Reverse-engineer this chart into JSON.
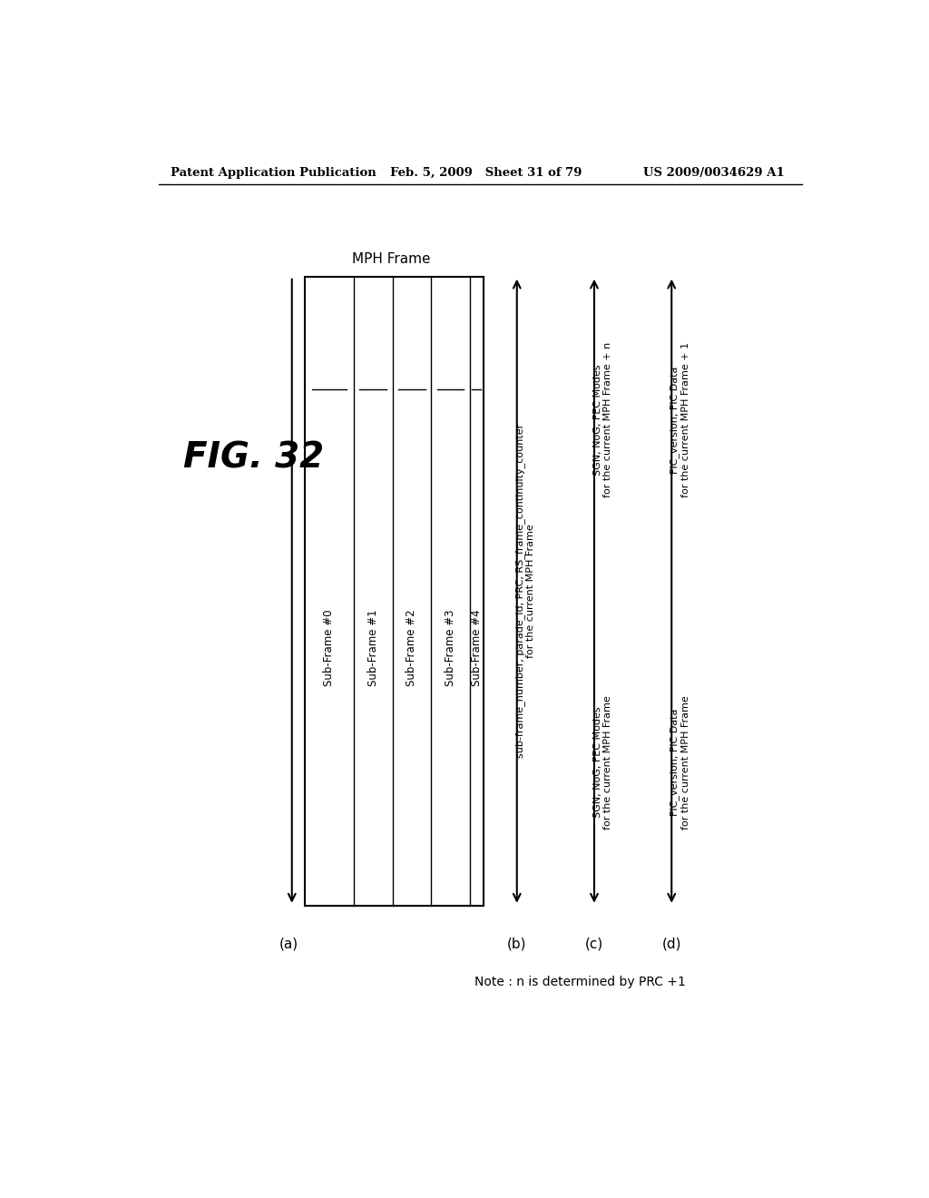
{
  "title": "FIG. 32",
  "header_left": "Patent Application Publication",
  "header_mid": "Feb. 5, 2009   Sheet 31 of 79",
  "header_right": "US 2009/0034629 A1",
  "mph_frame_label": "MPH Frame",
  "subframes": [
    "Sub-Frame #0",
    "Sub-Frame #1",
    "Sub-Frame #2",
    "Sub-Frame #3",
    "Sub-Frame #4"
  ],
  "label_a": "(a)",
  "label_b": "(b)",
  "label_c": "(c)",
  "label_d": "(d)",
  "arrow_b_text1": "sub-frame_number, parade_id, PRC, RS_frame_continuity_counter",
  "arrow_b_text2": "for the current MPH Frame",
  "arrow_c_text1_top": "SGN, NoG, FEC Modes",
  "arrow_c_text2_top": "for the current MPH Frame + n",
  "arrow_c_text1_bot": "SGN, NoG, FEC Modes",
  "arrow_c_text2_bot": "for the current MPH Frame",
  "arrow_d_text1_top": "FIC_version, FIC Data",
  "arrow_d_text2_top": "for the current MPH Frame + 1",
  "arrow_d_text1_bot": "FIC_version, FIC Data",
  "arrow_d_text2_bot": "for the current MPH Frame",
  "note": "Note : n is determined by PRC +1",
  "bg_color": "#ffffff",
  "fg_color": "#000000"
}
